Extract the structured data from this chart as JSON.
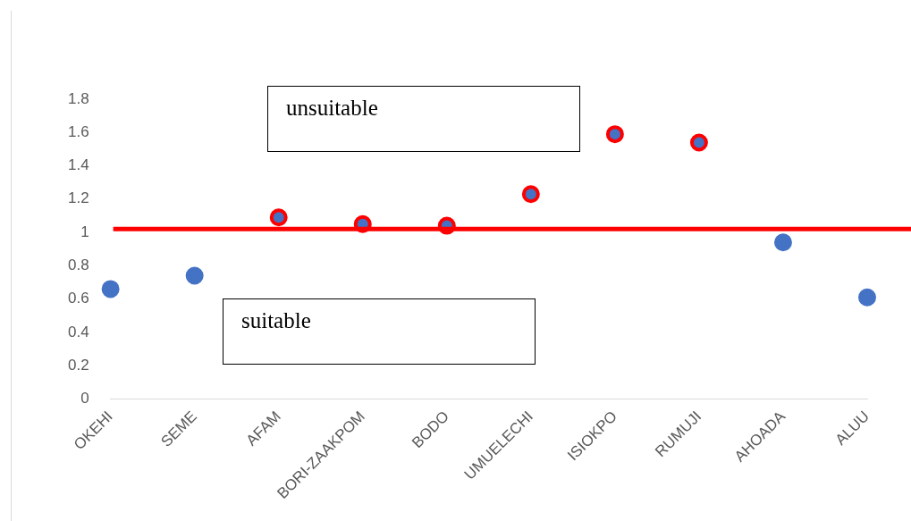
{
  "chart_data": {
    "type": "scatter",
    "categories": [
      "OKEHI",
      "SEME",
      "AFAM",
      "BORI-ZAAKPOM",
      "BODO",
      "UMUELECHI",
      "ISIOKPO",
      "RUMUJI",
      "AHOADA",
      "ALUU"
    ],
    "series": [
      {
        "color": "#4472c4",
        "colors": [
          "#4472c4",
          "#4472c4",
          "#ff0000",
          "#ff0000",
          "#ff0000",
          "#ff0000",
          "#ff0000",
          "#ff0000",
          "#4472c4",
          "#4472c4"
        ],
        "values": [
          0.66,
          0.74,
          1.09,
          1.05,
          1.04,
          1.23,
          1.59,
          1.54,
          0.94,
          0.61
        ]
      }
    ],
    "ylim": [
      0,
      1.8
    ],
    "yticks": [
      0,
      0.2,
      0.4,
      0.6,
      0.8,
      1,
      1.2,
      1.4,
      1.6,
      1.8
    ],
    "ref_lines": [
      {
        "axis": "y",
        "value": 1.02,
        "color": "#ff0000"
      }
    ],
    "annotations": [
      "unsuitable",
      "suitable"
    ],
    "marker": "circle",
    "grid": false,
    "legend": false
  }
}
